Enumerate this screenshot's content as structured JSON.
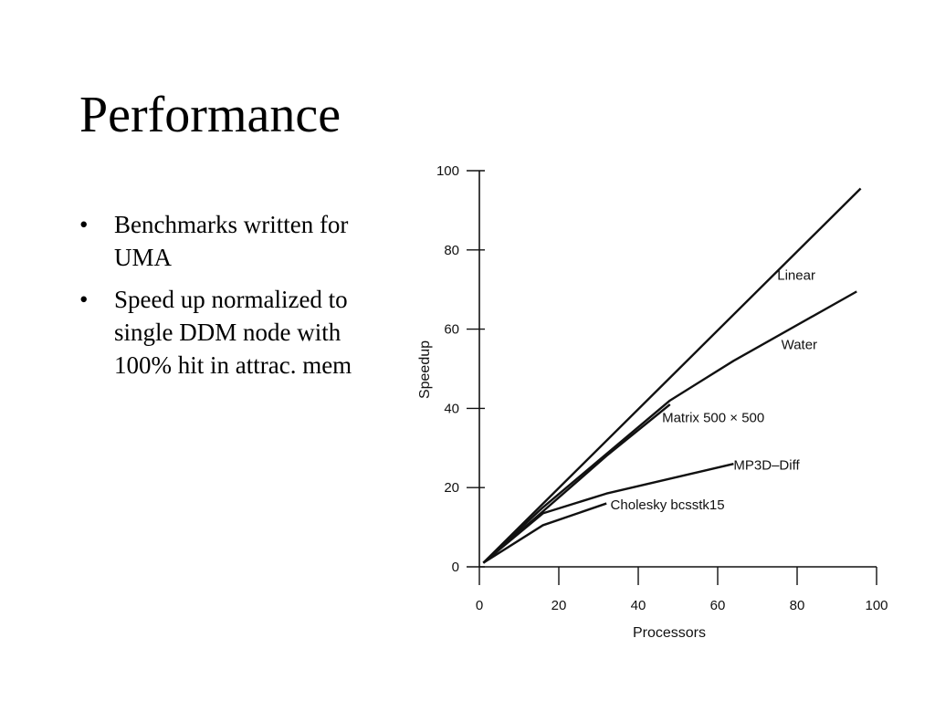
{
  "slide": {
    "title": "Performance",
    "bullets": [
      {
        "marker": "•",
        "text": "Benchmarks written for UMA"
      },
      {
        "marker": "•",
        "text": "Speed up normalized to single DDM node with 100% hit in attrac. mem"
      }
    ]
  },
  "chart_data": {
    "type": "line",
    "title": "",
    "xlabel": "Processors",
    "ylabel": "Speedup",
    "xlim": [
      0,
      100
    ],
    "ylim": [
      0,
      100
    ],
    "xticks": [
      0,
      20,
      40,
      60,
      80,
      100
    ],
    "yticks": [
      0,
      20,
      40,
      60,
      80,
      100
    ],
    "grid": false,
    "legend": "inline labels",
    "colors": {
      "lines": "#111111"
    },
    "series": [
      {
        "name": "Linear",
        "x": [
          1,
          96
        ],
        "y": [
          1,
          95.5
        ]
      },
      {
        "name": "Water",
        "x": [
          1,
          16,
          48,
          64,
          95
        ],
        "y": [
          1,
          15,
          42,
          52,
          69.5
        ]
      },
      {
        "name": "Matrix 500 × 500",
        "x": [
          1,
          16,
          32,
          48
        ],
        "y": [
          1,
          14,
          28,
          41
        ]
      },
      {
        "name": "MP3D–Diff",
        "x": [
          1,
          16,
          32,
          64
        ],
        "y": [
          1,
          13.5,
          18.5,
          26
        ]
      },
      {
        "name": "Cholesky bcsstk15",
        "x": [
          1,
          16,
          32
        ],
        "y": [
          1,
          10.5,
          16
        ]
      }
    ]
  }
}
